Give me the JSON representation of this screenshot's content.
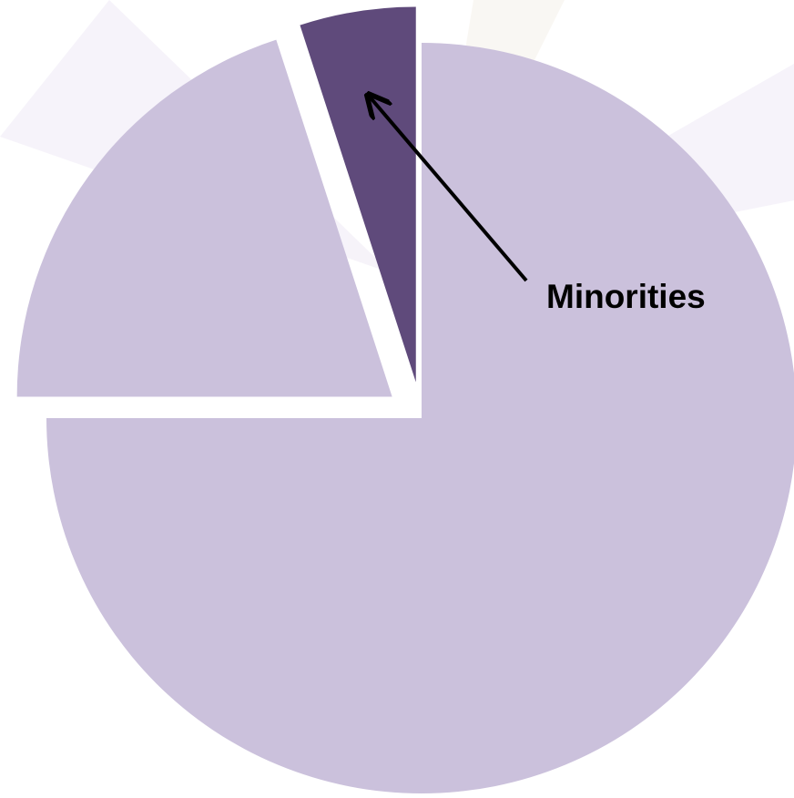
{
  "chart_data": {
    "type": "pie",
    "categories": [
      null,
      null,
      "Minorities"
    ],
    "values": [
      75,
      20,
      5
    ],
    "colors": [
      "#cbc1dc",
      "#cbc1dc",
      "#5f4a7b"
    ],
    "exploded": [
      false,
      true,
      true
    ]
  }
}
